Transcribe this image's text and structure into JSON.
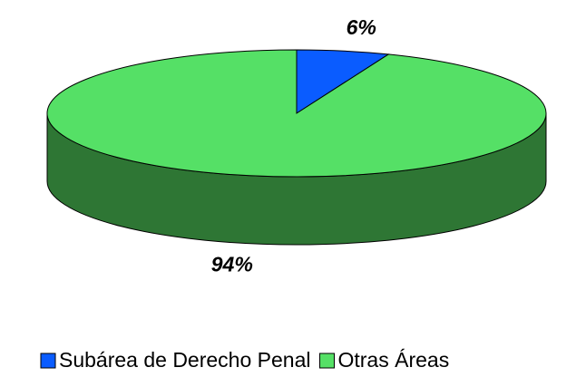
{
  "chart_data": {
    "type": "pie3d",
    "categories": [
      "Subárea de Derecho Penal",
      "Otras Áreas"
    ],
    "values": [
      6,
      94
    ],
    "value_labels": [
      "6%",
      "94%"
    ],
    "colors": [
      "#0a5cff",
      "#55e066"
    ],
    "side_colors": [
      "#0a3a9a",
      "#2e7634"
    ],
    "legend": "bottom"
  }
}
